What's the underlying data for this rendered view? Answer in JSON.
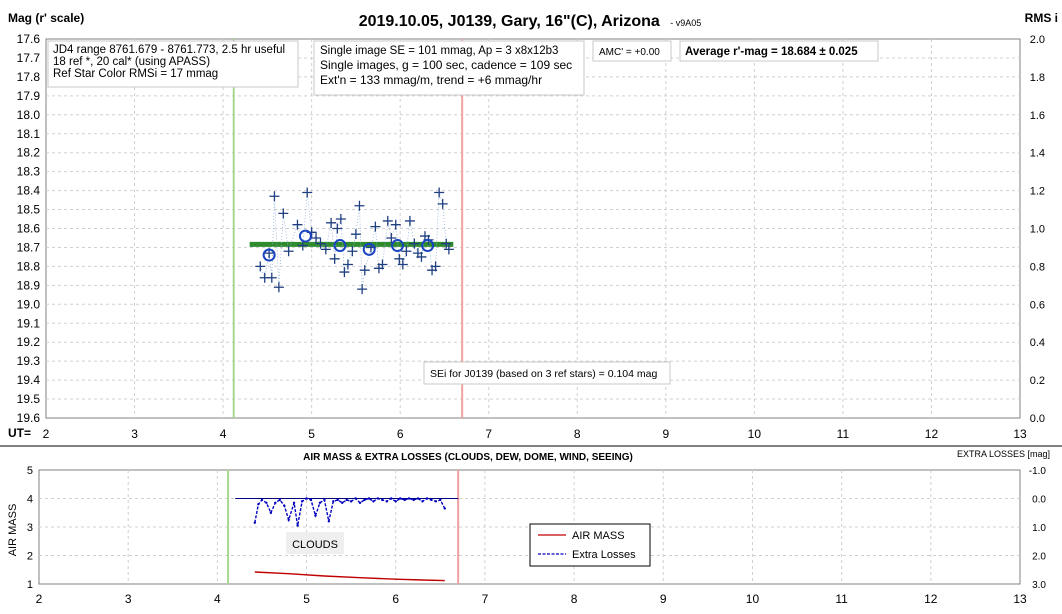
{
  "chart_data": [
    {
      "type": "scatter",
      "title": "2019.10.05, J0139, Gary, 16\"(C), Arizona",
      "version": "- v9A05",
      "ylabel": "Mag (r' scale)",
      "y2label": "RMS i",
      "xlabel": "UT=",
      "xlim": [
        2,
        13
      ],
      "ylim": [
        17.6,
        19.6
      ],
      "y_inverted": true,
      "y2lim": [
        0.0,
        2.0
      ],
      "x_ticks": [
        "2",
        "3",
        "4",
        "5",
        "6",
        "7",
        "8",
        "9",
        "10",
        "11",
        "12",
        "13"
      ],
      "y_ticks": [
        "17.6",
        "17.7",
        "17.8",
        "17.9",
        "18.0",
        "18.1",
        "18.2",
        "18.3",
        "18.4",
        "18.5",
        "18.6",
        "18.7",
        "18.8",
        "18.9",
        "19.0",
        "19.1",
        "19.2",
        "19.3",
        "19.4",
        "19.5",
        "19.6"
      ],
      "y2_ticks": [
        "2.0",
        "1.8",
        "1.6",
        "1.4",
        "1.2",
        "1.0",
        "0.8",
        "0.6",
        "0.4",
        "0.2",
        "0.0"
      ],
      "grid": true,
      "info_box_1": [
        "JD4 range 8761.679 - 8761.773, 2.5 hr useful",
        "18 ref *, 20 cal* (using APASS)",
        "Ref Star Color RMSi = 17 mmag"
      ],
      "info_box_2": [
        "Single image SE = 101 mmag, Ap = 3 x8x12b3",
        "Single images, g = 100 sec, cadence = 109 sec",
        "Ext'n = 133 mmag/m, trend = +6 mmag/hr"
      ],
      "amc_label": "AMC' = +0.00",
      "average_label": "Average r'-mag =  18.684 ± 0.025",
      "sei_label": "SEi for J0139 (based on 3 ref stars) = 0.104 mag",
      "vertical_lines": [
        {
          "x": 4.12,
          "color": "#a8d890"
        },
        {
          "x": 6.7,
          "color": "#f0a0a0"
        }
      ],
      "average_mag": 18.684,
      "average_x_range": [
        4.3,
        6.6
      ],
      "single_points": [
        {
          "x": 4.42,
          "y": 18.8
        },
        {
          "x": 4.47,
          "y": 18.86
        },
        {
          "x": 4.52,
          "y": 18.73
        },
        {
          "x": 4.55,
          "y": 18.86
        },
        {
          "x": 4.58,
          "y": 18.43
        },
        {
          "x": 4.63,
          "y": 18.91
        },
        {
          "x": 4.68,
          "y": 18.52
        },
        {
          "x": 4.74,
          "y": 18.72
        },
        {
          "x": 4.84,
          "y": 18.58
        },
        {
          "x": 4.9,
          "y": 18.69
        },
        {
          "x": 4.95,
          "y": 18.41
        },
        {
          "x": 5.0,
          "y": 18.62
        },
        {
          "x": 5.05,
          "y": 18.65
        },
        {
          "x": 5.1,
          "y": 18.68
        },
        {
          "x": 5.16,
          "y": 18.71
        },
        {
          "x": 5.22,
          "y": 18.57
        },
        {
          "x": 5.26,
          "y": 18.76
        },
        {
          "x": 5.29,
          "y": 18.6
        },
        {
          "x": 5.33,
          "y": 18.55
        },
        {
          "x": 5.37,
          "y": 18.83
        },
        {
          "x": 5.41,
          "y": 18.79
        },
        {
          "x": 5.46,
          "y": 18.72
        },
        {
          "x": 5.5,
          "y": 18.63
        },
        {
          "x": 5.54,
          "y": 18.48
        },
        {
          "x": 5.57,
          "y": 18.92
        },
        {
          "x": 5.6,
          "y": 18.82
        },
        {
          "x": 5.67,
          "y": 18.7
        },
        {
          "x": 5.72,
          "y": 18.59
        },
        {
          "x": 5.76,
          "y": 18.81
        },
        {
          "x": 5.8,
          "y": 18.79
        },
        {
          "x": 5.86,
          "y": 18.56
        },
        {
          "x": 5.9,
          "y": 18.65
        },
        {
          "x": 5.95,
          "y": 18.58
        },
        {
          "x": 5.99,
          "y": 18.76
        },
        {
          "x": 6.03,
          "y": 18.79
        },
        {
          "x": 6.07,
          "y": 18.72
        },
        {
          "x": 6.11,
          "y": 18.56
        },
        {
          "x": 6.16,
          "y": 18.68
        },
        {
          "x": 6.2,
          "y": 18.73
        },
        {
          "x": 6.24,
          "y": 18.75
        },
        {
          "x": 6.28,
          "y": 18.64
        },
        {
          "x": 6.32,
          "y": 18.66
        },
        {
          "x": 6.36,
          "y": 18.82
        },
        {
          "x": 6.4,
          "y": 18.8
        },
        {
          "x": 6.44,
          "y": 18.41
        },
        {
          "x": 6.48,
          "y": 18.47
        },
        {
          "x": 6.52,
          "y": 18.68
        },
        {
          "x": 6.55,
          "y": 18.71
        }
      ],
      "group_averages": [
        {
          "x": 4.52,
          "y": 18.74
        },
        {
          "x": 4.93,
          "y": 18.64
        },
        {
          "x": 5.32,
          "y": 18.69
        },
        {
          "x": 5.65,
          "y": 18.71
        },
        {
          "x": 5.97,
          "y": 18.69
        },
        {
          "x": 6.31,
          "y": 18.69
        }
      ]
    },
    {
      "type": "line",
      "title": "AIR MASS & EXTRA LOSSES (CLOUDS, DEW, DOME, WIND, SEEING)",
      "ylabel": "AIR MASS",
      "y2label": "EXTRA LOSSES [mag]",
      "xlim": [
        2,
        13
      ],
      "ylim": [
        1,
        5
      ],
      "y2lim": [
        -1.0,
        3.0
      ],
      "x_ticks": [
        "2",
        "3",
        "4",
        "5",
        "6",
        "7",
        "8",
        "9",
        "10",
        "11",
        "12",
        "13"
      ],
      "y_ticks": [
        "1",
        "2",
        "3",
        "4",
        "5"
      ],
      "y2_ticks": [
        "-1.0",
        "0.0",
        "1.0",
        "2.0",
        "3.0"
      ],
      "grid": true,
      "clouds_label": "CLOUDS",
      "legend": {
        "placement": "bottom-right",
        "entries": [
          {
            "label": "AIR MASS",
            "color": "#c00000",
            "style": "solid"
          },
          {
            "label": "Extra Losses",
            "color": "#0000c0",
            "style": "dashed-dot"
          }
        ]
      },
      "vertical_lines": [
        {
          "x": 4.12,
          "color": "#a8d890"
        },
        {
          "x": 6.7,
          "color": "#f0a0a0"
        }
      ],
      "zero_loss_line": {
        "x_range": [
          4.2,
          6.7
        ],
        "color": "#000080"
      },
      "series": [
        {
          "name": "AIR MASS",
          "color": "#c00000",
          "axis": "left",
          "x": [
            4.42,
            4.8,
            5.2,
            5.6,
            6.0,
            6.3,
            6.55
          ],
          "values": [
            1.42,
            1.36,
            1.28,
            1.22,
            1.17,
            1.14,
            1.12
          ]
        },
        {
          "name": "Extra Losses",
          "color": "#0000c0",
          "axis": "right",
          "x": [
            4.42,
            4.46,
            4.5,
            4.55,
            4.6,
            4.65,
            4.7,
            4.75,
            4.8,
            4.86,
            4.9,
            4.95,
            5.0,
            5.05,
            5.1,
            5.15,
            5.2,
            5.25,
            5.3,
            5.35,
            5.4,
            5.45,
            5.5,
            5.55,
            5.6,
            5.65,
            5.7,
            5.75,
            5.8,
            5.85,
            5.9,
            5.95,
            6.0,
            6.05,
            6.1,
            6.15,
            6.2,
            6.25,
            6.3,
            6.35,
            6.4,
            6.45,
            6.5,
            6.55
          ],
          "values": [
            0.85,
            0.2,
            0.05,
            0.15,
            0.5,
            0.15,
            0.05,
            0.25,
            0.75,
            0.15,
            0.95,
            0.1,
            0.0,
            0.05,
            0.6,
            0.15,
            0.05,
            0.8,
            0.1,
            0.05,
            0.15,
            0.05,
            0.1,
            0.0,
            0.15,
            0.05,
            0.0,
            0.1,
            0.0,
            0.05,
            0.1,
            0.0,
            0.1,
            0.0,
            0.05,
            0.0,
            0.05,
            0.0,
            0.1,
            0.0,
            0.05,
            0.1,
            0.05,
            0.35
          ]
        }
      ]
    }
  ]
}
